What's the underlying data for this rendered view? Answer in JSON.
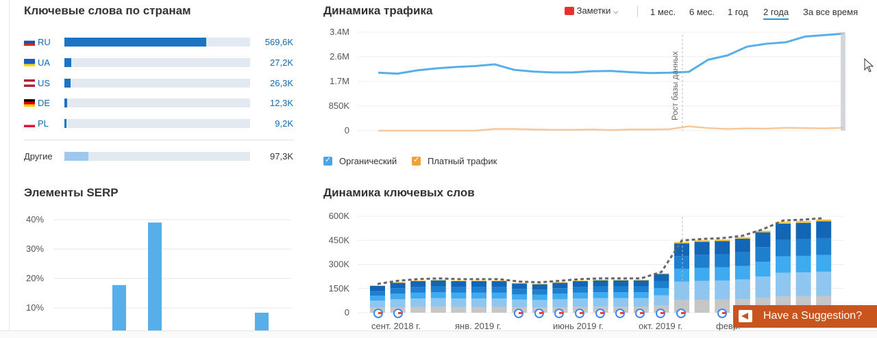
{
  "countries": {
    "title": "Ключевые слова по странам",
    "rows": [
      {
        "code": "RU",
        "value": "569,6K",
        "fraction": 0.765
      },
      {
        "code": "UA",
        "value": "27,2K",
        "fraction": 0.037
      },
      {
        "code": "US",
        "value": "26,3K",
        "fraction": 0.035
      },
      {
        "code": "DE",
        "value": "12,3K",
        "fraction": 0.016
      },
      {
        "code": "PL",
        "value": "9,2K",
        "fraction": 0.012
      }
    ],
    "other": {
      "label": "Другие",
      "value": "97,3K",
      "fraction": 0.13
    }
  },
  "serp": {
    "title": "Элементы SERP",
    "chart_data": {
      "type": "bar",
      "yticks": [
        "40%",
        "30%",
        "20%",
        "10%"
      ],
      "values": [
        0,
        0,
        17.5,
        39,
        0,
        0,
        8
      ],
      "ylim": [
        0,
        40
      ]
    }
  },
  "traffic": {
    "title": "Динамика трафика",
    "notes_label": "Заметки",
    "periods": [
      "1 мес.",
      "6 мес.",
      "1 год",
      "2 года",
      "За все время"
    ],
    "active_period": "2 года",
    "annotation": "Рост базы данных",
    "legend": {
      "organic": "Органический",
      "paid": "Платный трафик"
    },
    "colors": {
      "organic": "#58aee8",
      "paid": "#f7c79a"
    },
    "chart_data": {
      "type": "line",
      "yticks": [
        "3.4M",
        "2.6M",
        "1.7M",
        "850K",
        "0"
      ],
      "ylim": [
        0,
        3400000
      ],
      "series": [
        {
          "values": [
            2000000,
            1970000,
            2080000,
            2150000,
            2200000,
            2230000,
            2290000,
            2100000,
            2040000,
            2010000,
            2010000,
            2050000,
            2060000,
            2020000,
            1990000,
            2000000,
            2030000,
            2450000,
            2600000,
            2900000,
            3000000,
            3050000,
            3250000,
            3300000,
            3350000
          ]
        },
        {
          "values": [
            0,
            0,
            0,
            0,
            0,
            0,
            60000,
            60000,
            40000,
            30000,
            30000,
            40000,
            20000,
            40000,
            40000,
            50000,
            150000,
            90000,
            60000,
            80000,
            70000,
            100000,
            90000,
            80000,
            100000
          ]
        }
      ]
    }
  },
  "keywords": {
    "title": "Динамика ключевых слов",
    "chart_data": {
      "type": "bar",
      "yticks": [
        "600K",
        "450K",
        "300K",
        "150K",
        "0"
      ],
      "ylim": [
        0,
        600000
      ],
      "x_labels": [
        "сент. 2018 г.",
        "янв. 2019 г.",
        "июнь 2019 г.",
        "окт. 2019 г.",
        "февр."
      ],
      "totals": [
        170000,
        190000,
        200000,
        205000,
        200000,
        200000,
        200000,
        185000,
        180000,
        190000,
        200000,
        205000,
        205000,
        205000,
        245000,
        440000,
        450000,
        455000,
        470000,
        510000,
        565000,
        570000,
        580000
      ]
    }
  },
  "suggestion": {
    "label": "Have a Suggestion?"
  }
}
